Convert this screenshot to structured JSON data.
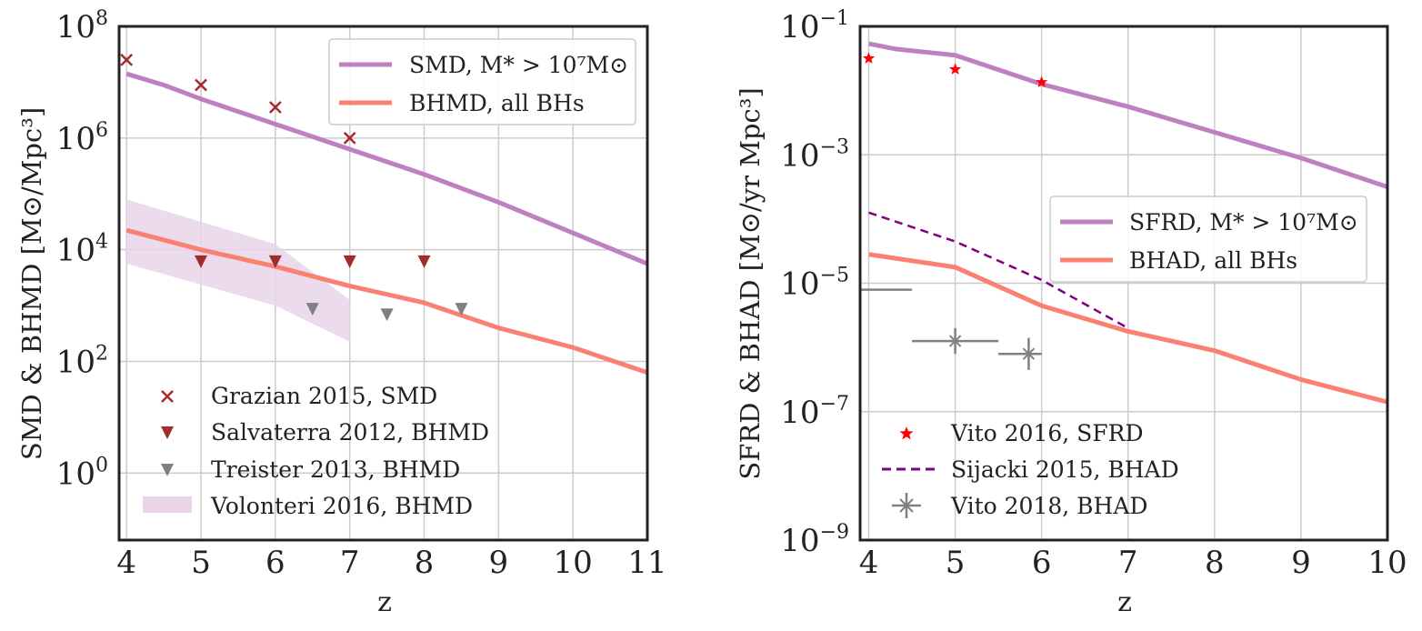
{
  "chart_data": [
    {
      "type": "line",
      "xlabel": "z",
      "ylabel": "SMD & BHMD [M⊙/Mpc³]",
      "xlim": [
        3.9,
        11
      ],
      "ylim_log10": [
        -1.2,
        8
      ],
      "y_scale": "log",
      "x_ticks": [
        "4",
        "5",
        "6",
        "7",
        "8",
        "9",
        "10",
        "11"
      ],
      "y_ticks": [
        {
          "base": "10",
          "exp": "8"
        },
        {
          "base": "10",
          "exp": "6"
        },
        {
          "base": "10",
          "exp": "4"
        },
        {
          "base": "10",
          "exp": "2"
        },
        {
          "base": "10",
          "exp": "0"
        }
      ],
      "grid": true,
      "legend_upper_position": "top-right",
      "legend_lower_position": "bottom-left",
      "series": [
        {
          "name": "SMD, M* > 10⁷M⊙",
          "kind": "line",
          "color": "#bf80c0",
          "x": [
            4,
            4.5,
            5,
            6,
            7,
            8,
            9,
            10,
            11
          ],
          "y_log10": [
            7.15,
            6.95,
            6.7,
            6.25,
            5.8,
            5.35,
            4.85,
            4.3,
            3.75
          ]
        },
        {
          "name": "BHMD, all BHs",
          "kind": "line",
          "color": "#fa8072",
          "x": [
            4,
            5,
            6,
            7,
            8,
            9,
            10,
            11
          ],
          "y_log10": [
            4.35,
            4.0,
            3.7,
            3.35,
            3.05,
            2.6,
            2.25,
            1.8
          ]
        },
        {
          "name": "Grazian 2015, SMD",
          "kind": "scatter",
          "marker": "x",
          "color": "#a52a2a",
          "x": [
            4,
            5,
            6,
            7
          ],
          "y_log10": [
            7.4,
            6.95,
            6.55,
            6.0
          ]
        },
        {
          "name": "Salvaterra 2012, BHMD",
          "kind": "scatter",
          "marker": "triangle-down",
          "color": "#a52a2a",
          "x": [
            5,
            6,
            7,
            8
          ],
          "y_log10": [
            3.8,
            3.8,
            3.8,
            3.8
          ]
        },
        {
          "name": "Treister 2013, BHMD",
          "kind": "scatter",
          "marker": "triangle-down",
          "color": "#808080",
          "x": [
            6.5,
            7.5,
            8.5
          ],
          "y_log10": [
            2.95,
            2.85,
            2.95
          ]
        },
        {
          "name": "Volonteri 2016, BHMD",
          "kind": "band",
          "color": "#e8d5ea",
          "x": [
            4,
            6,
            7
          ],
          "y_low_log10": [
            3.75,
            3.0,
            2.35
          ],
          "y_high_log10": [
            4.9,
            4.1,
            3.1
          ]
        }
      ]
    },
    {
      "type": "line",
      "xlabel": "z",
      "ylabel": "SFRD & BHAD [M⊙/yr Mpc³]",
      "xlim": [
        3.9,
        10
      ],
      "ylim_log10": [
        -9,
        -1
      ],
      "y_scale": "log",
      "x_ticks": [
        "4",
        "5",
        "6",
        "7",
        "8",
        "9",
        "10"
      ],
      "y_ticks": [
        {
          "base": "10",
          "exp": "−1"
        },
        {
          "base": "10",
          "exp": "−3"
        },
        {
          "base": "10",
          "exp": "−5"
        },
        {
          "base": "10",
          "exp": "−7"
        },
        {
          "base": "10",
          "exp": "−9"
        }
      ],
      "grid": true,
      "legend_upper_position": "center-right",
      "legend_lower_position": "bottom-left",
      "series": [
        {
          "name": "SFRD, M* > 10⁷M⊙",
          "kind": "line",
          "color": "#bf80c0",
          "x": [
            4,
            4.3,
            5,
            6,
            7,
            8,
            9,
            10
          ],
          "y_log10": [
            -1.27,
            -1.35,
            -1.45,
            -1.9,
            -2.25,
            -2.65,
            -3.05,
            -3.5
          ]
        },
        {
          "name": "BHAD, all BHs",
          "kind": "line",
          "color": "#fa8072",
          "x": [
            4,
            5,
            6,
            7,
            8,
            9,
            10
          ],
          "y_log10": [
            -4.55,
            -4.75,
            -5.35,
            -5.75,
            -6.05,
            -6.5,
            -6.85
          ]
        },
        {
          "name": "Vito 2016, SFRD",
          "kind": "scatter",
          "marker": "star",
          "color": "#ff0000",
          "x": [
            4,
            5,
            6
          ],
          "y_log10": [
            -1.5,
            -1.67,
            -1.87
          ]
        },
        {
          "name": "Sijacki 2015, BHAD",
          "kind": "dashed",
          "color": "#800080",
          "x": [
            4,
            5,
            6,
            7
          ],
          "y_log10": [
            -3.9,
            -4.35,
            -4.95,
            -5.7
          ]
        },
        {
          "name": "Vito 2018, BHAD",
          "kind": "errorbar",
          "color": "#808080",
          "x": [
            4.0,
            5.0,
            5.85
          ],
          "y_log10": [
            -5.1,
            -5.9,
            -6.1
          ],
          "xerr_low": [
            0.1,
            0.5,
            0.35
          ],
          "xerr_high": [
            0.5,
            0.5,
            0.15
          ],
          "yerr_log10": [
            0.0,
            0.2,
            0.25
          ]
        }
      ]
    }
  ]
}
